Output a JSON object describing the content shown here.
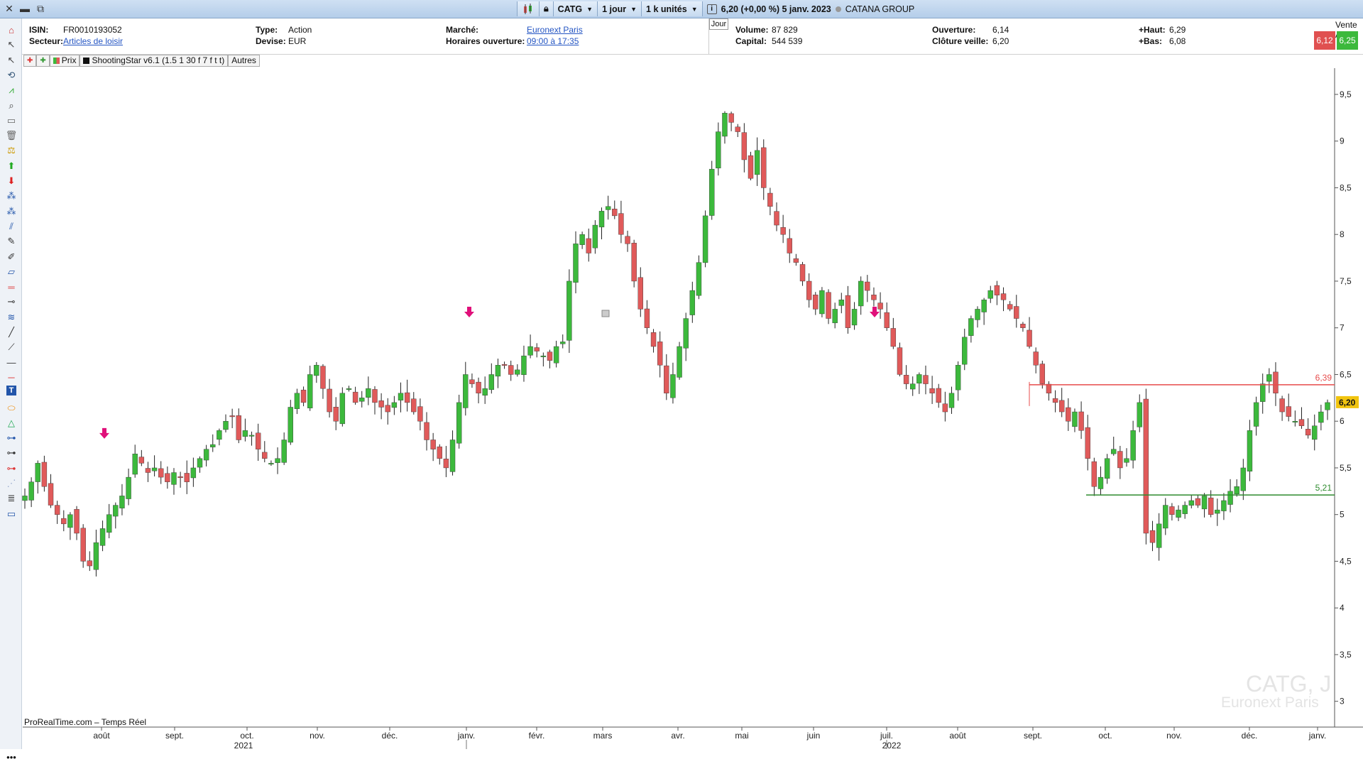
{
  "titlebar": {
    "ticker": "CATG",
    "period": "1 jour",
    "units": "1 k unités",
    "quote": "6,20 (+0,00 %) 5 janv. 2023",
    "company": "CATANA GROUP"
  },
  "info": {
    "isin_label": "ISIN:",
    "isin": "FR0010193052",
    "secteur_label": "Secteur:",
    "secteur": "Articles de loisir",
    "type_label": "Type:",
    "type": "Action",
    "devise_label": "Devise:",
    "devise": "EUR",
    "marche_label": "Marché:",
    "marche": "Euronext Paris",
    "horaires_label": "Horaires ouverture:",
    "horaires": "09:00 à 17:35",
    "jour_tab": "Jour",
    "volume_label": "Volume:",
    "volume": "87 829",
    "capital_label": "Capital:",
    "capital": "544 539",
    "ouverture_label": "Ouverture:",
    "ouverture": "6,14",
    "cloture_label": "Clôture veille:",
    "cloture": "6,20",
    "haut_label": "+Haut:",
    "haut": "6,29",
    "bas_label": "+Bas:",
    "bas": "6,08",
    "vente_achat": "Vente Achat",
    "vente": "6,12",
    "achat": "6,25"
  },
  "legend": {
    "prix": "Prix",
    "indicator": "ShootingStar v6.1 (1.5 1 30 f 7 f t t)",
    "autres": "Autres"
  },
  "watermark": {
    "symbol": "CATG, J",
    "market": "Euronext Paris"
  },
  "source": "ProRealTime.com – Temps Réel",
  "colors": {
    "up": "#3cb93c",
    "down": "#e05a5a",
    "resistance": "#e74c4c",
    "support": "#2e8b2e",
    "arrow": "#e0107a",
    "last": "#f1c40f"
  },
  "tools": [
    "magnet-icon",
    "pointer-icon",
    "pointer-icon",
    "lasso-icon",
    "indicator-icon",
    "zoom-icon",
    "ruler-icon",
    "trash-icon",
    "balance-icon",
    "buy-arrow-icon",
    "sell-arrow-icon",
    "pattern-icon",
    "pattern-icon",
    "fibo-icon",
    "pen-icon",
    "eraser-icon",
    "rect-icon",
    "hline-icon",
    "node-icon",
    "channel-icon",
    "line-icon",
    "segment-icon",
    "hline-icon",
    "horizontal-icon",
    "text-icon",
    "ellipse-icon",
    "triangle-icon",
    "ray-icon",
    "ray-icon",
    "ray-icon",
    "ghost-icon",
    "fibo-icon",
    "rect-icon"
  ],
  "chart_data": {
    "type": "candlestick",
    "title": "CATG, J",
    "ylim": [
      2.8,
      9.75
    ],
    "y_ticks": [
      "3",
      "3,5",
      "4",
      "4,5",
      "5",
      "5,5",
      "6",
      "6,5",
      "7",
      "7,5",
      "8",
      "8,5",
      "9",
      "9,5"
    ],
    "x_ticks": [
      "août",
      "sept.",
      "oct.",
      "nov.",
      "déc.",
      "janv.",
      "févr.",
      "mars",
      "avr.",
      "mai",
      "juin",
      "juil.",
      "août",
      "sept.",
      "oct.",
      "nov.",
      "déc.",
      "janv."
    ],
    "year_labels": [
      "2021",
      "2022"
    ],
    "last_price": "6,20",
    "resistance": {
      "value": 6.39,
      "label": "6,39"
    },
    "support": {
      "value": 5.21,
      "label": "5,21"
    },
    "closes": [
      5.2,
      5.35,
      5.55,
      5.3,
      5.1,
      5.0,
      4.9,
      5.0,
      4.8,
      4.5,
      4.45,
      4.7,
      4.85,
      5.0,
      5.1,
      5.2,
      5.4,
      5.65,
      5.55,
      5.45,
      5.5,
      5.4,
      5.35,
      5.45,
      5.4,
      5.35,
      5.5,
      5.6,
      5.7,
      5.75,
      5.9,
      6.0,
      6.05,
      5.8,
      5.9,
      5.85,
      5.7,
      5.6,
      5.55,
      5.6,
      5.8,
      6.15,
      6.3,
      6.2,
      6.5,
      6.6,
      6.35,
      6.1,
      6.0,
      6.3,
      6.35,
      6.2,
      6.25,
      6.35,
      6.2,
      6.15,
      6.1,
      6.2,
      6.3,
      6.2,
      6.1,
      6.0,
      5.8,
      5.7,
      5.6,
      5.5,
      5.8,
      6.2,
      6.5,
      6.4,
      6.3,
      6.35,
      6.5,
      6.6,
      6.6,
      6.5,
      6.55,
      6.7,
      6.8,
      6.75,
      6.7,
      6.65,
      6.8,
      6.85,
      7.5,
      7.9,
      8.0,
      7.8,
      8.1,
      8.25,
      8.3,
      8.2,
      8.0,
      7.9,
      7.5,
      7.2,
      7.0,
      6.8,
      6.6,
      6.3,
      6.5,
      6.8,
      7.1,
      7.4,
      7.7,
      8.2,
      8.7,
      9.1,
      9.3,
      9.2,
      9.1,
      8.8,
      8.6,
      8.9,
      8.5,
      8.3,
      8.1,
      8.0,
      7.8,
      7.7,
      7.5,
      7.3,
      7.2,
      7.4,
      7.1,
      7.2,
      7.3,
      7.0,
      7.2,
      7.5,
      7.4,
      7.3,
      7.2,
      7.0,
      6.8,
      6.5,
      6.4,
      6.4,
      6.5,
      6.4,
      6.3,
      6.2,
      6.1,
      6.3,
      6.6,
      6.9,
      7.1,
      7.2,
      7.3,
      7.4,
      7.35,
      7.3,
      7.2,
      7.1,
      7.0,
      6.8,
      6.6,
      6.4,
      6.3,
      6.2,
      6.1,
      6.0,
      6.1,
      5.9,
      5.6,
      5.3,
      5.4,
      5.6,
      5.7,
      5.5,
      5.6,
      5.9,
      6.2,
      4.8,
      4.7,
      4.9,
      5.1,
      5.0,
      5.05,
      5.1,
      5.15,
      5.1,
      5.2,
      5.0,
      5.05,
      5.15,
      5.25,
      5.3,
      5.5,
      5.9,
      6.2,
      6.4,
      6.5,
      6.3,
      6.1,
      6.05,
      6.0,
      5.95,
      5.85,
      5.95,
      6.1,
      6.2
    ]
  }
}
